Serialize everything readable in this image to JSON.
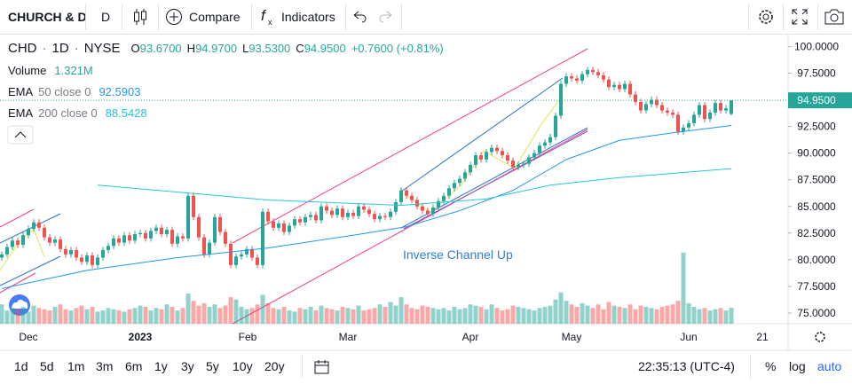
{
  "toolbar": {
    "symbol": "CHURCH & D",
    "interval": "D",
    "compare": "Compare",
    "indicators": "Indicators"
  },
  "legend": {
    "ticker": "CHD",
    "interval": "1D",
    "exchange": "NYSE",
    "separator": "·",
    "ohlc": [
      {
        "label": "O",
        "value": "93.6700"
      },
      {
        "label": "H",
        "value": "94.9700"
      },
      {
        "label": "L",
        "value": "93.5300"
      },
      {
        "label": "C",
        "value": "94.9500"
      }
    ],
    "change": "+0.7600 (+0.81%)",
    "volume": {
      "name": "Volume",
      "value": "1.321M"
    },
    "ema50": {
      "name": "EMA",
      "params": "50 close 0",
      "value": "92.5903"
    },
    "ema200": {
      "name": "EMA",
      "params": "200 close 0",
      "value": "88.5428"
    }
  },
  "annotation": "Inverse Channel Up",
  "chart_data": {
    "type": "candlestick",
    "up_color": "#26a69a",
    "down_color": "#ef5350",
    "grid": false,
    "ylim": [
      74,
      101.2
    ],
    "yticks": [
      {
        "value": 100,
        "label": "100.0000"
      },
      {
        "value": 97.5,
        "label": "97.5000"
      },
      {
        "value": 95,
        "label": "95.0000"
      },
      {
        "value": 92.5,
        "label": "92.5000"
      },
      {
        "value": 90,
        "label": "90.0000"
      },
      {
        "value": 87.5,
        "label": "87.5000"
      },
      {
        "value": 85,
        "label": "85.0000"
      },
      {
        "value": 82.5,
        "label": "82.5000"
      },
      {
        "value": 80,
        "label": "80.0000"
      },
      {
        "value": 77.5,
        "label": "77.5000"
      },
      {
        "value": 75,
        "label": "75.0000"
      }
    ],
    "last_price": {
      "value": 94.95,
      "label": "94.9500"
    },
    "x_labels": [
      "Dec",
      "2023",
      "Feb",
      "Mar",
      "Apr",
      "May",
      "Jun",
      "21"
    ],
    "candles": [
      [
        80.2,
        80.8,
        79.9,
        80.5
      ],
      [
        80.5,
        81.5,
        80.2,
        81.2
      ],
      [
        81.2,
        82.1,
        80.9,
        81.8
      ],
      [
        81.8,
        82.1,
        81.1,
        81.4
      ],
      [
        81.4,
        82.6,
        81.1,
        82.3
      ],
      [
        82.3,
        83.2,
        82.0,
        82.9
      ],
      [
        82.9,
        83.8,
        82.6,
        83.5
      ],
      [
        83.5,
        83.8,
        82.7,
        83.0
      ],
      [
        83.0,
        83.3,
        81.8,
        82.1
      ],
      [
        82.1,
        82.4,
        81.3,
        81.6
      ],
      [
        81.6,
        82.2,
        81.3,
        81.9
      ],
      [
        81.9,
        82.2,
        80.7,
        81.0
      ],
      [
        81.0,
        81.3,
        80.2,
        80.5
      ],
      [
        80.5,
        81.2,
        80.2,
        80.9
      ],
      [
        80.9,
        81.2,
        79.9,
        80.2
      ],
      [
        80.2,
        80.5,
        79.5,
        79.8
      ],
      [
        79.8,
        80.7,
        79.5,
        80.4
      ],
      [
        80.4,
        80.7,
        79.2,
        79.5
      ],
      [
        79.5,
        80.5,
        79.2,
        80.2
      ],
      [
        80.2,
        81.2,
        79.9,
        80.9
      ],
      [
        80.9,
        81.6,
        80.6,
        81.3
      ],
      [
        81.3,
        82.3,
        81.0,
        82.0
      ],
      [
        82.0,
        82.3,
        81.3,
        81.6
      ],
      [
        81.6,
        82.6,
        81.3,
        82.3
      ],
      [
        82.3,
        82.6,
        81.5,
        81.8
      ],
      [
        81.8,
        82.7,
        81.5,
        82.4
      ],
      [
        82.4,
        82.8,
        82.1,
        82.5
      ],
      [
        82.5,
        82.8,
        81.7,
        82.0
      ],
      [
        82.0,
        83.0,
        81.7,
        82.7
      ],
      [
        82.7,
        83.3,
        82.4,
        83.0
      ],
      [
        83.0,
        83.3,
        82.1,
        82.4
      ],
      [
        82.4,
        83.1,
        82.1,
        82.8
      ],
      [
        82.8,
        83.1,
        81.2,
        81.5
      ],
      [
        81.5,
        82.5,
        81.2,
        82.2
      ],
      [
        82.2,
        82.5,
        81.7,
        82.0
      ],
      [
        82.0,
        86.3,
        81.7,
        86.0
      ],
      [
        86.0,
        86.3,
        83.7,
        84.0
      ],
      [
        84.0,
        84.3,
        81.8,
        82.1
      ],
      [
        82.1,
        82.4,
        80.2,
        80.5
      ],
      [
        80.5,
        81.9,
        80.2,
        81.6
      ],
      [
        81.6,
        84.3,
        81.3,
        84.0
      ],
      [
        84.0,
        84.3,
        82.3,
        82.6
      ],
      [
        82.6,
        82.9,
        81.2,
        81.5
      ],
      [
        81.5,
        81.8,
        79.2,
        79.5
      ],
      [
        79.5,
        80.6,
        79.2,
        80.3
      ],
      [
        80.3,
        80.8,
        80.0,
        80.5
      ],
      [
        80.5,
        81.3,
        80.2,
        81.0
      ],
      [
        81.0,
        81.3,
        79.9,
        80.2
      ],
      [
        80.2,
        80.5,
        79.2,
        79.5
      ],
      [
        79.5,
        84.8,
        79.2,
        84.5
      ],
      [
        84.5,
        84.8,
        83.3,
        83.6
      ],
      [
        83.6,
        83.9,
        82.7,
        83.0
      ],
      [
        83.0,
        83.7,
        82.7,
        83.4
      ],
      [
        83.4,
        83.7,
        82.3,
        82.6
      ],
      [
        82.6,
        83.5,
        82.3,
        83.2
      ],
      [
        83.2,
        84.1,
        82.9,
        83.8
      ],
      [
        83.8,
        84.1,
        83.2,
        83.5
      ],
      [
        83.5,
        84.3,
        83.2,
        84.0
      ],
      [
        84.0,
        84.5,
        83.7,
        84.2
      ],
      [
        84.2,
        84.5,
        83.4,
        83.7
      ],
      [
        83.7,
        85.3,
        83.4,
        85.0
      ],
      [
        85.0,
        85.3,
        84.3,
        84.6
      ],
      [
        84.6,
        84.9,
        83.9,
        84.2
      ],
      [
        84.2,
        85.1,
        83.9,
        84.8
      ],
      [
        84.8,
        85.1,
        83.7,
        84.0
      ],
      [
        84.0,
        84.7,
        83.7,
        84.4
      ],
      [
        84.4,
        84.7,
        83.8,
        84.1
      ],
      [
        84.1,
        85.3,
        83.8,
        85.0
      ],
      [
        85.0,
        85.3,
        84.4,
        84.7
      ],
      [
        84.7,
        85.0,
        84.0,
        84.3
      ],
      [
        84.3,
        84.6,
        83.5,
        83.8
      ],
      [
        83.8,
        84.4,
        83.5,
        84.1
      ],
      [
        84.1,
        84.4,
        83.7,
        84.0
      ],
      [
        84.0,
        84.8,
        83.7,
        84.5
      ],
      [
        84.5,
        85.7,
        84.2,
        85.4
      ],
      [
        85.4,
        86.8,
        85.1,
        86.5
      ],
      [
        86.5,
        86.8,
        85.7,
        86.0
      ],
      [
        86.0,
        86.3,
        85.3,
        85.6
      ],
      [
        85.6,
        85.9,
        84.7,
        85.0
      ],
      [
        85.0,
        85.3,
        84.3,
        84.6
      ],
      [
        84.6,
        84.9,
        84.0,
        84.3
      ],
      [
        84.3,
        85.2,
        84.0,
        84.9
      ],
      [
        84.9,
        85.8,
        84.6,
        85.5
      ],
      [
        85.5,
        86.3,
        85.2,
        86.0
      ],
      [
        86.0,
        87.0,
        85.7,
        86.7
      ],
      [
        86.7,
        87.5,
        86.4,
        87.2
      ],
      [
        87.2,
        87.9,
        86.9,
        87.6
      ],
      [
        87.6,
        88.5,
        87.3,
        88.2
      ],
      [
        88.2,
        89.2,
        87.9,
        88.9
      ],
      [
        88.9,
        90.1,
        88.6,
        89.8
      ],
      [
        89.8,
        90.1,
        89.1,
        89.4
      ],
      [
        89.4,
        90.4,
        89.1,
        90.1
      ],
      [
        90.1,
        90.8,
        89.8,
        90.5
      ],
      [
        90.5,
        90.8,
        89.9,
        90.2
      ],
      [
        90.2,
        90.5,
        89.5,
        89.8
      ],
      [
        89.8,
        90.1,
        89.0,
        89.3
      ],
      [
        89.3,
        89.6,
        88.4,
        88.7
      ],
      [
        88.7,
        89.2,
        88.4,
        88.9
      ],
      [
        88.9,
        89.3,
        88.6,
        89.0
      ],
      [
        89.0,
        89.9,
        88.7,
        89.6
      ],
      [
        89.6,
        90.3,
        89.3,
        90.0
      ],
      [
        90.0,
        91.0,
        89.7,
        90.7
      ],
      [
        90.7,
        91.3,
        90.4,
        91.0
      ],
      [
        91.0,
        91.8,
        90.7,
        91.5
      ],
      [
        91.5,
        93.8,
        91.2,
        93.5
      ],
      [
        93.5,
        96.8,
        93.2,
        96.5
      ],
      [
        96.5,
        97.5,
        96.2,
        97.2
      ],
      [
        97.2,
        97.5,
        96.7,
        97.0
      ],
      [
        97.0,
        97.3,
        96.5,
        96.8
      ],
      [
        96.8,
        97.7,
        96.5,
        97.4
      ],
      [
        97.4,
        98.1,
        97.1,
        97.8
      ],
      [
        97.8,
        98.1,
        97.3,
        97.6
      ],
      [
        97.6,
        97.9,
        97.0,
        97.3
      ],
      [
        97.3,
        97.6,
        96.6,
        96.9
      ],
      [
        96.9,
        97.2,
        95.9,
        96.2
      ],
      [
        96.2,
        96.7,
        95.9,
        96.4
      ],
      [
        96.4,
        96.7,
        95.7,
        96.0
      ],
      [
        96.0,
        96.8,
        95.7,
        96.5
      ],
      [
        96.5,
        96.8,
        95.2,
        95.5
      ],
      [
        95.5,
        95.8,
        94.5,
        94.8
      ],
      [
        94.8,
        95.1,
        93.7,
        94.0
      ],
      [
        94.0,
        94.9,
        93.7,
        94.6
      ],
      [
        94.6,
        95.3,
        94.3,
        95.0
      ],
      [
        95.0,
        95.3,
        94.2,
        94.5
      ],
      [
        94.5,
        94.8,
        93.7,
        94.0
      ],
      [
        94.0,
        94.3,
        93.5,
        93.8
      ],
      [
        93.8,
        94.1,
        93.3,
        93.6
      ],
      [
        93.6,
        93.9,
        91.7,
        92.0
      ],
      [
        92.0,
        92.7,
        91.7,
        92.4
      ],
      [
        92.4,
        93.1,
        92.1,
        92.8
      ],
      [
        92.8,
        93.9,
        92.5,
        93.6
      ],
      [
        93.6,
        94.8,
        93.3,
        94.5
      ],
      [
        94.5,
        94.8,
        92.9,
        93.2
      ],
      [
        93.2,
        94.1,
        92.9,
        93.8
      ],
      [
        93.8,
        95.0,
        93.5,
        94.7
      ],
      [
        94.7,
        95.0,
        93.7,
        94.0
      ],
      [
        94.0,
        94.5,
        93.7,
        94.2
      ],
      [
        93.67,
        94.97,
        93.53,
        94.95
      ]
    ],
    "volume": [
      1.6,
      1.1,
      1.3,
      1.2,
      1.4,
      1.0,
      1.5,
      1.3,
      1.2,
      1.1,
      1.4,
      1.6,
      1.2,
      1.1,
      1.3,
      1.5,
      1.2,
      1.4,
      1.0,
      1.1,
      1.3,
      1.2,
      1.1,
      1.0,
      1.2,
      1.3,
      1.5,
      1.4,
      1.1,
      1.3,
      1.2,
      1.6,
      1.4,
      1.1,
      1.3,
      2.5,
      1.9,
      1.5,
      1.7,
      1.4,
      1.6,
      1.3,
      1.5,
      2.2,
      2.0,
      1.4,
      1.2,
      1.3,
      1.6,
      2.4,
      1.7,
      1.3,
      1.2,
      1.4,
      1.1,
      1.0,
      1.3,
      1.2,
      1.4,
      1.1,
      1.5,
      1.3,
      1.2,
      1.1,
      1.4,
      1.3,
      1.2,
      1.5,
      1.1,
      1.2,
      1.3,
      1.6,
      1.4,
      1.8,
      1.5,
      2.2,
      1.6,
      1.3,
      1.2,
      1.5,
      1.4,
      1.3,
      1.2,
      1.3,
      1.1,
      1.4,
      1.2,
      1.3,
      1.6,
      1.5,
      1.4,
      1.2,
      1.6,
      1.3,
      1.1,
      1.2,
      1.5,
      1.4,
      1.3,
      1.2,
      1.1,
      1.3,
      1.4,
      1.5,
      2.0,
      2.6,
      1.9,
      1.6,
      1.4,
      1.7,
      1.5,
      1.3,
      1.6,
      1.2,
      1.8,
      1.5,
      1.4,
      1.3,
      1.6,
      1.2,
      1.5,
      1.4,
      1.3,
      1.2,
      1.4,
      1.5,
      1.6,
      1.9,
      5.9,
      1.7,
      1.4,
      1.2,
      1.3,
      1.1,
      1.2,
      1.3,
      1.1,
      1.321
    ],
    "ema": [
      {
        "name": "EMA 50",
        "color": "#2196f3",
        "points": [
          [
            0,
            77.3
          ],
          [
            16,
            79.0
          ],
          [
            33,
            80.2
          ],
          [
            50,
            81.1
          ],
          [
            66,
            82.3
          ],
          [
            76,
            83.1
          ],
          [
            86,
            84.6
          ],
          [
            96,
            86.5
          ],
          [
            106,
            89.4
          ],
          [
            116,
            91.2
          ],
          [
            126,
            91.9
          ],
          [
            137,
            92.5903
          ]
        ]
      },
      {
        "name": "EMA 200",
        "color": "#26c6da",
        "points": [
          [
            18,
            87.0
          ],
          [
            50,
            85.6
          ],
          [
            75,
            85.1
          ],
          [
            91,
            85.7
          ],
          [
            103,
            87.0
          ],
          [
            116,
            87.7
          ],
          [
            137,
            88.5428
          ]
        ]
      }
    ]
  },
  "bottom": {
    "periods": [
      "1d",
      "5d",
      "1m",
      "3m",
      "6m",
      "1y",
      "3y",
      "5y",
      "10y",
      "20y"
    ],
    "time": "22:35:13 (UTC-4)",
    "percent": "%",
    "log": "log",
    "auto": "auto"
  }
}
